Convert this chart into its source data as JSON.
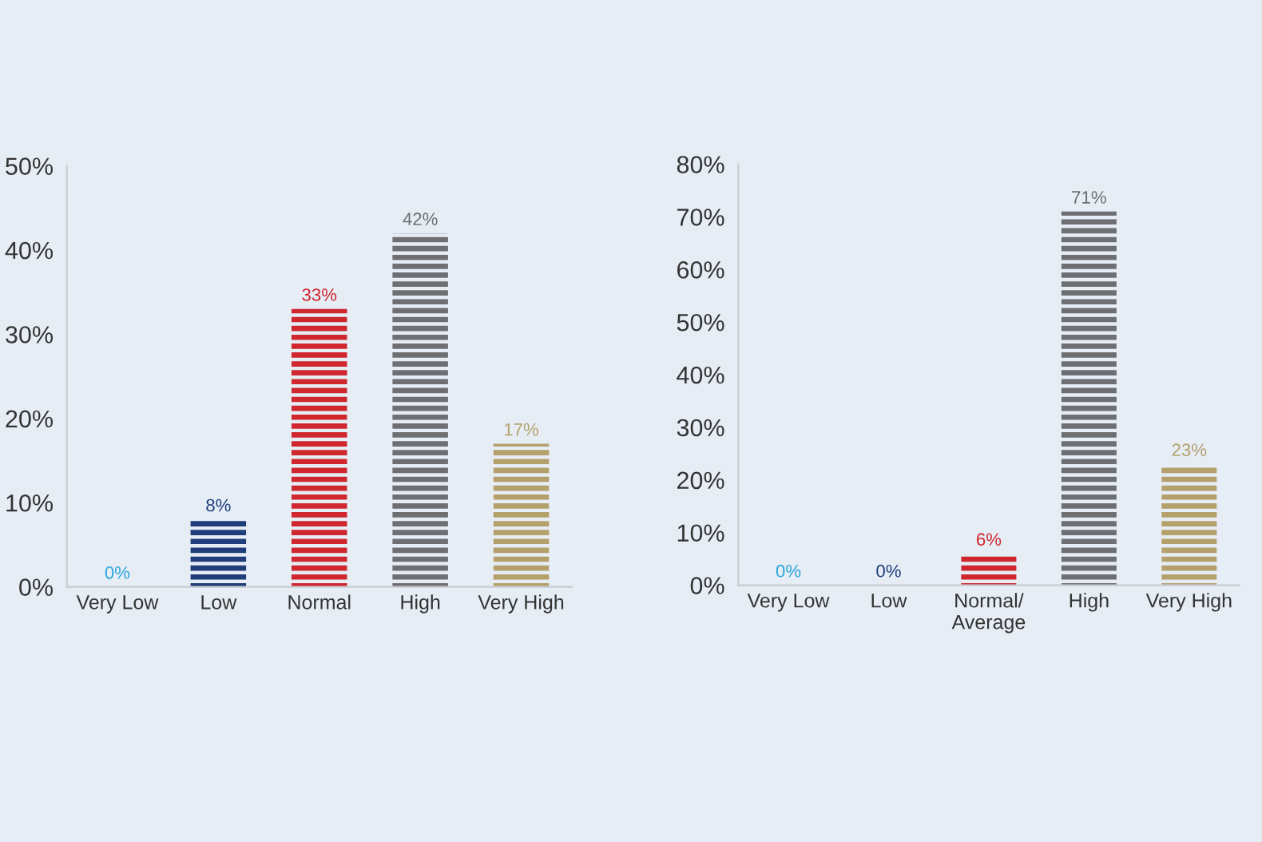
{
  "chart_data": [
    {
      "type": "bar",
      "categories": [
        "Very Low",
        "Low",
        "Normal",
        "High",
        "Very High"
      ],
      "values": [
        0,
        8,
        33,
        42,
        17
      ],
      "value_labels": [
        "0%",
        "8%",
        "33%",
        "42%",
        "17%"
      ],
      "colors": [
        "#29a3dc",
        "#1f3d7a",
        "#d0262d",
        "#6e6f72",
        "#b3a06a"
      ],
      "ylim": [
        0,
        50
      ],
      "yticks": [
        {
          "value": 0,
          "label": "0%"
        },
        {
          "value": 10,
          "label": "10%"
        },
        {
          "value": 20,
          "label": "20%"
        },
        {
          "value": 30,
          "label": "30%"
        },
        {
          "value": 40,
          "label": "40%"
        },
        {
          "value": 50,
          "label": "50%"
        }
      ],
      "grid": false,
      "legend": false
    },
    {
      "type": "bar",
      "categories": [
        "Very Low",
        "Low",
        "Normal/\nAverage",
        "High",
        "Very High"
      ],
      "values": [
        0,
        0,
        6,
        71,
        23
      ],
      "value_labels": [
        "0%",
        "0%",
        "6%",
        "71%",
        "23%"
      ],
      "colors": [
        "#29a3dc",
        "#1f3d7a",
        "#d0262d",
        "#6e6f72",
        "#b3a06a"
      ],
      "ylim": [
        0,
        80
      ],
      "yticks": [
        {
          "value": 0,
          "label": "0%"
        },
        {
          "value": 10,
          "label": "10%"
        },
        {
          "value": 20,
          "label": "20%"
        },
        {
          "value": 30,
          "label": "30%"
        },
        {
          "value": 40,
          "label": "40%"
        },
        {
          "value": 50,
          "label": "50%"
        },
        {
          "value": 60,
          "label": "60%"
        },
        {
          "value": 70,
          "label": "70%"
        },
        {
          "value": 80,
          "label": "80%"
        }
      ],
      "grid": false,
      "legend": false
    }
  ]
}
